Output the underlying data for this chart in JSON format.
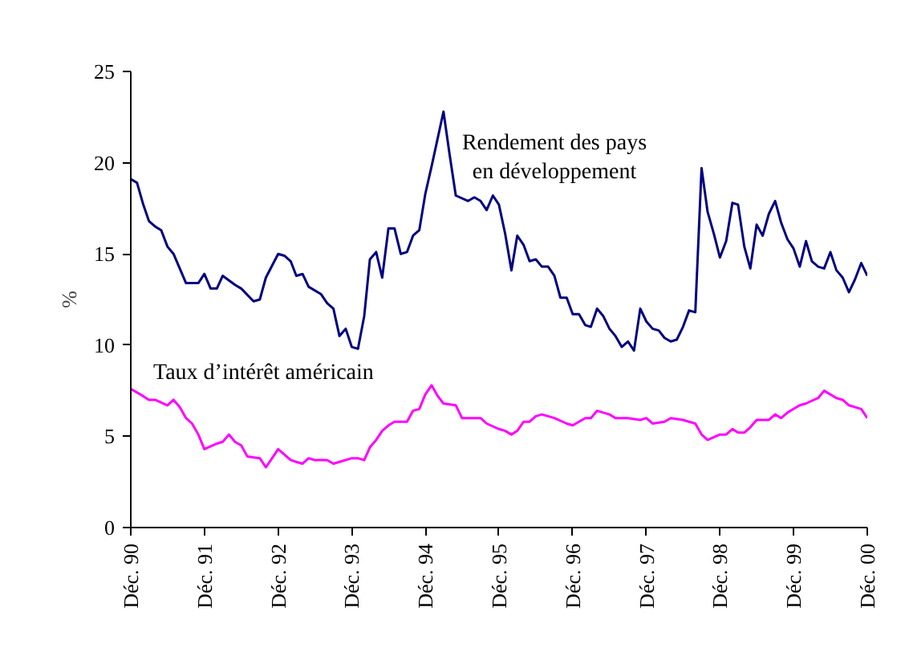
{
  "chart_data": {
    "type": "line",
    "ylabel": "%",
    "xlim": [
      "1990-12",
      "2000-12"
    ],
    "ylim": [
      0,
      25
    ],
    "yticks": [
      0,
      5,
      10,
      15,
      20,
      25
    ],
    "xticks": [
      {
        "value": "1990-12",
        "label": "Déc. 90"
      },
      {
        "value": "1991-12",
        "label": "Déc. 91"
      },
      {
        "value": "1992-12",
        "label": "Déc. 92"
      },
      {
        "value": "1993-12",
        "label": "Déc. 93"
      },
      {
        "value": "1994-12",
        "label": "Déc. 94"
      },
      {
        "value": "1995-12",
        "label": "Déc. 95"
      },
      {
        "value": "1996-12",
        "label": "Déc. 96"
      },
      {
        "value": "1997-12",
        "label": "Déc. 97"
      },
      {
        "value": "1998-12",
        "label": "Déc. 98"
      },
      {
        "value": "1999-12",
        "label": "Déc. 99"
      },
      {
        "value": "2000-12",
        "label": "Déc. 00"
      }
    ],
    "grid": false,
    "line_style": "solid",
    "series": [
      {
        "color": "#000080",
        "x": [
          "1990-12",
          "1991-01",
          "1991-02",
          "1991-03",
          "1991-04",
          "1991-05",
          "1991-06",
          "1991-07",
          "1991-09",
          "1991-11",
          "1991-12",
          "1992-01",
          "1992-02",
          "1992-03",
          "1992-05",
          "1992-06",
          "1992-08",
          "1992-09",
          "1992-10",
          "1992-12",
          "1993-01",
          "1993-02",
          "1993-03",
          "1993-04",
          "1993-05",
          "1993-07",
          "1993-08",
          "1993-09",
          "1993-10",
          "1993-11",
          "1993-12",
          "1994-01",
          "1994-02",
          "1994-03",
          "1994-04",
          "1994-05",
          "1994-06",
          "1994-07",
          "1994-08",
          "1994-09",
          "1994-10",
          "1994-11",
          "1994-12",
          "1995-01",
          "1995-03",
          "1995-04",
          "1995-05",
          "1995-07",
          "1995-08",
          "1995-09",
          "1995-10",
          "1995-11",
          "1995-12",
          "1996-01",
          "1996-02",
          "1996-03",
          "1996-04",
          "1996-05",
          "1996-06",
          "1996-07",
          "1996-08",
          "1996-09",
          "1996-10",
          "1996-11",
          "1996-12",
          "1997-01",
          "1997-02",
          "1997-03",
          "1997-04",
          "1997-05",
          "1997-06",
          "1997-07",
          "1997-08",
          "1997-09",
          "1997-10",
          "1997-11",
          "1997-12",
          "1998-01",
          "1998-02",
          "1998-03",
          "1998-04",
          "1998-05",
          "1998-06",
          "1998-07",
          "1998-08",
          "1998-09",
          "1998-10",
          "1998-11",
          "1998-12",
          "1999-01",
          "1999-02",
          "1999-03",
          "1999-04",
          "1999-05",
          "1999-06",
          "1999-07",
          "1999-08",
          "1999-09",
          "1999-10",
          "1999-11",
          "1999-12",
          "2000-01",
          "2000-02",
          "2000-03",
          "2000-04",
          "2000-05",
          "2000-06",
          "2000-07",
          "2000-08",
          "2000-09",
          "2000-10",
          "2000-11",
          "2000-12"
        ],
        "values": [
          19.1,
          18.9,
          17.7,
          16.8,
          16.5,
          16.3,
          15.4,
          15.0,
          13.4,
          13.4,
          13.9,
          13.1,
          13.1,
          13.8,
          13.3,
          13.1,
          12.4,
          12.5,
          13.7,
          15.0,
          14.9,
          14.6,
          13.8,
          13.9,
          13.2,
          12.8,
          12.3,
          12.0,
          10.5,
          10.9,
          9.9,
          9.8,
          11.6,
          14.7,
          15.1,
          13.7,
          16.4,
          16.4,
          15.0,
          15.1,
          16.0,
          16.3,
          18.3,
          19.8,
          22.8,
          20.4,
          18.2,
          17.9,
          18.1,
          17.9,
          17.4,
          18.2,
          17.7,
          16.1,
          14.1,
          16.0,
          15.5,
          14.6,
          14.7,
          14.3,
          14.3,
          13.8,
          12.6,
          12.6,
          11.7,
          11.7,
          11.1,
          11.0,
          12.0,
          11.6,
          10.9,
          10.5,
          9.9,
          10.2,
          9.7,
          12.0,
          11.3,
          10.9,
          10.8,
          10.4,
          10.2,
          10.3,
          11.0,
          11.9,
          11.8,
          19.7,
          17.3,
          16.1,
          14.8,
          15.7,
          17.8,
          17.7,
          15.4,
          14.2,
          16.6,
          16.0,
          17.2,
          17.9,
          16.7,
          15.8,
          15.3,
          14.3,
          15.7,
          14.6,
          14.3,
          14.2,
          15.1,
          14.1,
          13.7,
          12.9,
          13.6,
          14.5,
          13.8
        ]
      },
      {
        "color": "#ff00ff",
        "x": [
          "1990-12",
          "1991-02",
          "1991-03",
          "1991-04",
          "1991-06",
          "1991-07",
          "1991-08",
          "1991-09",
          "1991-10",
          "1991-11",
          "1991-12",
          "1992-02",
          "1992-03",
          "1992-04",
          "1992-05",
          "1992-06",
          "1992-07",
          "1992-09",
          "1992-10",
          "1992-11",
          "1992-12",
          "1993-01",
          "1993-02",
          "1993-03",
          "1993-04",
          "1993-05",
          "1993-06",
          "1993-08",
          "1993-09",
          "1993-10",
          "1993-12",
          "1994-01",
          "1994-02",
          "1994-03",
          "1994-04",
          "1994-05",
          "1994-06",
          "1994-07",
          "1994-09",
          "1994-10",
          "1994-11",
          "1994-12",
          "1995-01",
          "1995-02",
          "1995-03",
          "1995-05",
          "1995-06",
          "1995-09",
          "1995-10",
          "1995-12",
          "1996-01",
          "1996-02",
          "1996-03",
          "1996-04",
          "1996-05",
          "1996-06",
          "1996-07",
          "1996-09",
          "1996-11",
          "1996-12",
          "1997-01",
          "1997-02",
          "1997-03",
          "1997-04",
          "1997-06",
          "1997-07",
          "1997-09",
          "1997-11",
          "1997-12",
          "1998-01",
          "1998-03",
          "1998-04",
          "1998-06",
          "1998-07",
          "1998-08",
          "1998-09",
          "1998-10",
          "1998-12",
          "1999-01",
          "1999-02",
          "1999-03",
          "1999-04",
          "1999-05",
          "1999-06",
          "1999-08",
          "1999-09",
          "1999-10",
          "1999-11",
          "1999-12",
          "2000-01",
          "2000-02",
          "2000-04",
          "2000-05",
          "2000-07",
          "2000-08",
          "2000-09",
          "2000-11",
          "2000-12"
        ],
        "values": [
          7.6,
          7.2,
          7.0,
          7.0,
          6.7,
          7.0,
          6.6,
          6.0,
          5.7,
          5.1,
          4.3,
          4.6,
          4.7,
          5.1,
          4.7,
          4.5,
          3.9,
          3.8,
          3.3,
          3.8,
          4.3,
          4.0,
          3.7,
          3.6,
          3.5,
          3.8,
          3.7,
          3.7,
          3.5,
          3.6,
          3.8,
          3.8,
          3.7,
          4.4,
          4.8,
          5.3,
          5.6,
          5.8,
          5.8,
          6.4,
          6.5,
          7.3,
          7.8,
          7.2,
          6.8,
          6.7,
          6.0,
          6.0,
          5.7,
          5.4,
          5.3,
          5.1,
          5.3,
          5.8,
          5.8,
          6.1,
          6.2,
          6.0,
          5.7,
          5.6,
          5.8,
          6.0,
          6.0,
          6.4,
          6.2,
          6.0,
          6.0,
          5.9,
          6.0,
          5.7,
          5.8,
          6.0,
          5.9,
          5.8,
          5.7,
          5.1,
          4.8,
          5.1,
          5.1,
          5.4,
          5.2,
          5.2,
          5.5,
          5.9,
          5.9,
          6.2,
          6.0,
          6.3,
          6.5,
          6.7,
          6.8,
          7.1,
          7.5,
          7.1,
          7.0,
          6.7,
          6.5,
          6.0
        ]
      }
    ],
    "annotations": [
      "Rendement des pays\nen développement",
      "Taux d’intérêt américain"
    ]
  }
}
